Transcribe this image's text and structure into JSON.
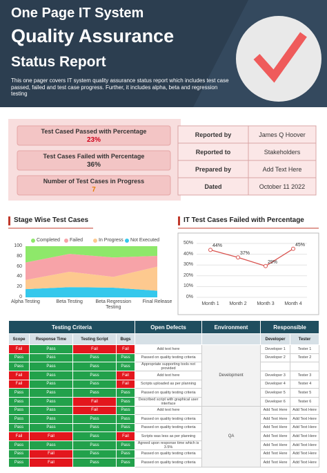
{
  "header": {
    "title_lines": [
      "One Page IT System",
      "Quality Assurance",
      "Status Report"
    ],
    "description": "This one pager covers IT system quality assurance status report which includes test case passed, failed and test case progress.  Further, it includes alpha, beta and regression testing"
  },
  "summary": [
    {
      "label": "Test Cased Passed with Percentage",
      "value": "23%",
      "color": "#d0021b"
    },
    {
      "label": "Test Cases Failed with Percentage",
      "value": "36%",
      "color": "#333333"
    },
    {
      "label": "Number of Test Cases in Progress",
      "value": "7",
      "color": "#e67e00"
    }
  ],
  "report_info": [
    [
      "Reported by",
      "James Q Hoover"
    ],
    [
      "Reported to",
      "Stakeholders"
    ],
    [
      "Prepared by",
      "Add Text Here"
    ],
    [
      "Dated",
      "October 11 2022"
    ]
  ],
  "chart_data": [
    {
      "type": "stacked_area",
      "title": "Stage Wise Test Cases",
      "categories": [
        "Alpha Testing",
        "Beta Testing",
        "Beta Regression Testing",
        "Final Release"
      ],
      "series": [
        {
          "name": "Completed",
          "color": "#8ee86a",
          "values": [
            32,
            15,
            22,
            19
          ]
        },
        {
          "name": "Failed",
          "color": "#f7a3a8",
          "values": [
            34,
            35,
            38,
            21
          ]
        },
        {
          "name": "In Progress",
          "color": "#fdc98f",
          "values": [
            18,
            30,
            21,
            47
          ]
        },
        {
          "name": "Not Executed",
          "color": "#35c8ec",
          "values": [
            16,
            20,
            19,
            13
          ]
        }
      ],
      "ylim": [
        0,
        100
      ],
      "yticks": [
        0,
        20,
        40,
        60,
        80,
        100
      ],
      "grid": false,
      "legend": "top"
    },
    {
      "type": "line",
      "title": "IT Test Cases Failed with Percentage",
      "categories": [
        "Month 1",
        "Month 2",
        "Month 3",
        "Month 4"
      ],
      "values": [
        44,
        37,
        29,
        45
      ],
      "value_labels": [
        "44%",
        "37%",
        "29%",
        "45%"
      ],
      "color": "#d9534f",
      "ylim": [
        0,
        50
      ],
      "yticks": [
        {
          "value": 0,
          "label": "0%"
        },
        {
          "value": 10,
          "label": "10%"
        },
        {
          "value": 20,
          "label": "20%"
        },
        {
          "value": 30,
          "label": "30%"
        },
        {
          "value": 40,
          "label": "40%"
        },
        {
          "value": 50,
          "label": "50%"
        }
      ],
      "grid": true
    }
  ],
  "table": {
    "group_headers": [
      "Testing Criteria",
      "Open Defects",
      "Environment",
      "Responsible"
    ],
    "column_headers": [
      "Scope",
      "Response Time",
      "Testing Script",
      "Bugs",
      "Developer",
      "Tester"
    ],
    "status_colors": {
      "Pass": "#22a14b",
      "Fail": "#e3161d"
    },
    "environment": [
      "Development",
      "QA"
    ],
    "rows": [
      [
        "Fail",
        "Pass",
        "Fail",
        "Fail",
        "Add text here",
        "Developer 1",
        "Tester 1"
      ],
      [
        "Pass",
        "Pass",
        "Pass",
        "Pass",
        "Passed on quality testing criteria",
        "Developer 2",
        "Tester 2"
      ],
      [
        "Pass",
        "Pass",
        "Pass",
        "Pass",
        "Appropriate supporting tools not provided",
        null,
        null
      ],
      [
        "Fail",
        "Pass",
        "Pass",
        "Fail",
        "Add text here",
        "Developer 3",
        "Tester 3"
      ],
      [
        "Fail",
        "Pass",
        "Pass",
        "Fail",
        "Scripts uploaded as per planning",
        "Developer 4",
        "Tester 4"
      ],
      [
        "Pass",
        "Pass",
        "Pass",
        "Pass",
        "Passed on quality testing criteria",
        "Developer 5",
        "Tester 5"
      ],
      [
        "Pass",
        "Pass",
        "Fail",
        "Pass",
        "Described script with graphical user interface",
        "Developer 6",
        "Tester 6"
      ],
      [
        "Pass",
        "Pass",
        "Fail",
        "Pass",
        "Add text here",
        "Add Text Here",
        "Add Text Here"
      ],
      [
        "Pass",
        "Pass",
        "Pass",
        "Pass",
        "Passed on quality testing criteria",
        "Add Text Here",
        "Add Text Here"
      ],
      [
        "Pass",
        "Pass",
        "Pass",
        "Pass",
        "Passed on quality testing criteria",
        "Add Text Here",
        "Add Text Here"
      ],
      [
        "Fail",
        "Fail",
        "Pass",
        "Fail",
        "Scripts was less as per planning",
        "Add Text Here",
        "Add Text Here"
      ],
      [
        "Pass",
        "Pass",
        "Pass",
        "Pass",
        "Agreed upon response time which is 3.5%",
        "Add Text Here",
        "Add Text Here"
      ],
      [
        "Pass",
        "Fail",
        "Pass",
        "Pass",
        "Passed on quality testing criteria",
        "Add Text Here",
        "Add Text Here"
      ],
      [
        "Pass",
        "Fail",
        "Pass",
        "Pass",
        "Passed on quality testing criteria",
        "Add Text Here",
        "Add Text Here"
      ]
    ]
  }
}
